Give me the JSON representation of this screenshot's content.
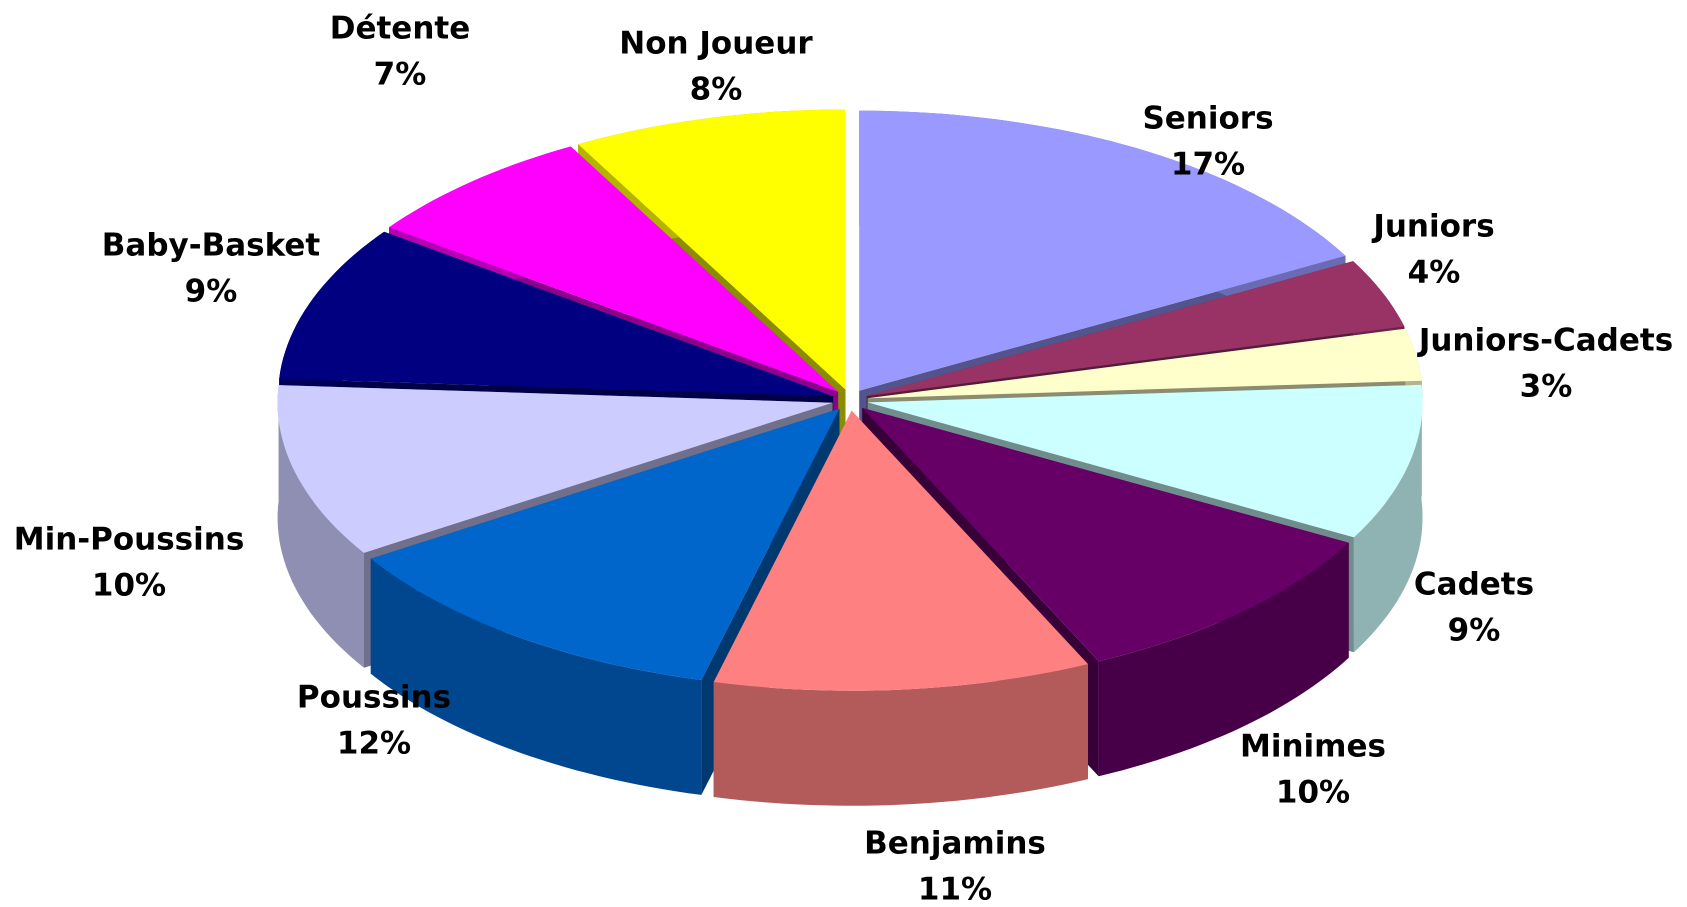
{
  "chart_data": {
    "type": "pie",
    "categories": [
      "Seniors",
      "Juniors",
      "Juniors-Cadets",
      "Cadets",
      "Minimes",
      "Benjamins",
      "Poussins",
      "Min-Poussins",
      "Baby-Basket",
      "Détente",
      "Non Joueur"
    ],
    "values": [
      17,
      4,
      3,
      9,
      10,
      11,
      12,
      10,
      9,
      7,
      8
    ],
    "value_labels": [
      "17%",
      "4%",
      "3%",
      "9%",
      "10%",
      "11%",
      "12%",
      "10%",
      "9%",
      "7%",
      "8%"
    ],
    "colors": [
      "#9999ff",
      "#993366",
      "#ffffcc",
      "#ccffff",
      "#660066",
      "#ff8080",
      "#0066cc",
      "#ccccff",
      "#000080",
      "#ff00ff",
      "#ffff00"
    ]
  }
}
